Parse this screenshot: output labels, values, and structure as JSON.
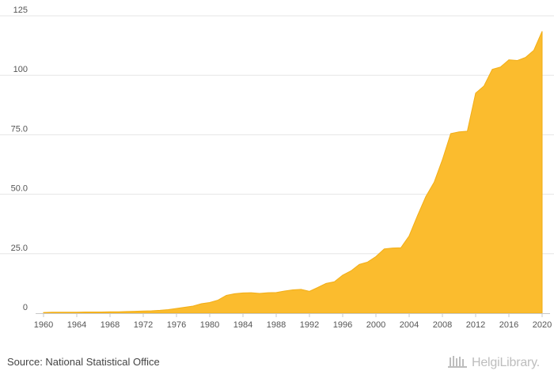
{
  "source_text": "Source: National Statistical Office",
  "logo": {
    "text": "HelgiLibrary.",
    "icon": "helgi-library-logo-icon"
  },
  "colors": {
    "area_fill": "#FBBC2E",
    "area_stroke": "#F2AE17",
    "grid": "#E6E6E6",
    "axis": "#C8C8C8"
  },
  "chart_data": {
    "type": "area",
    "title": "",
    "xlabel": "",
    "ylabel": "",
    "xlim": [
      1960,
      2020
    ],
    "ylim": [
      0,
      125
    ],
    "y_ticks": [
      0,
      25.0,
      50.0,
      75.0,
      100,
      125
    ],
    "y_tick_labels": [
      "0",
      "25.0",
      "50.0",
      "75.0",
      "100",
      "125"
    ],
    "x_tick_labels": [
      "1960",
      "1964",
      "1968",
      "1972",
      "1976",
      "1980",
      "1984",
      "1988",
      "1992",
      "1996",
      "2000",
      "2004",
      "2008",
      "2012",
      "2016",
      "2020"
    ],
    "grid": true,
    "legend": "none",
    "x": [
      1960,
      1961,
      1962,
      1963,
      1964,
      1965,
      1966,
      1967,
      1968,
      1969,
      1970,
      1971,
      1972,
      1973,
      1974,
      1975,
      1976,
      1977,
      1978,
      1979,
      1980,
      1981,
      1982,
      1983,
      1984,
      1985,
      1986,
      1987,
      1988,
      1989,
      1990,
      1991,
      1992,
      1993,
      1994,
      1995,
      1996,
      1997,
      1998,
      1999,
      2000,
      2001,
      2002,
      2003,
      2004,
      2005,
      2006,
      2007,
      2008,
      2009,
      2010,
      2011,
      2012,
      2013,
      2014,
      2015,
      2016,
      2017,
      2018,
      2019,
      2020
    ],
    "values": [
      0.3,
      0.4,
      0.4,
      0.4,
      0.4,
      0.5,
      0.5,
      0.5,
      0.6,
      0.6,
      0.7,
      0.8,
      0.9,
      1.0,
      1.2,
      1.5,
      2.0,
      2.5,
      3.0,
      4.0,
      4.5,
      5.5,
      7.5,
      8.2,
      8.5,
      8.6,
      8.3,
      8.6,
      8.7,
      9.3,
      9.8,
      10.0,
      9.2,
      10.8,
      12.5,
      13.2,
      16.0,
      17.8,
      20.5,
      21.5,
      23.8,
      27.0,
      27.4,
      27.5,
      32.5,
      41.0,
      49.0,
      55.0,
      64.5,
      75.5,
      76.2,
      76.5,
      92.5,
      95.5,
      102.5,
      103.5,
      106.5,
      106.2,
      107.5,
      110.5,
      118.5
    ]
  }
}
